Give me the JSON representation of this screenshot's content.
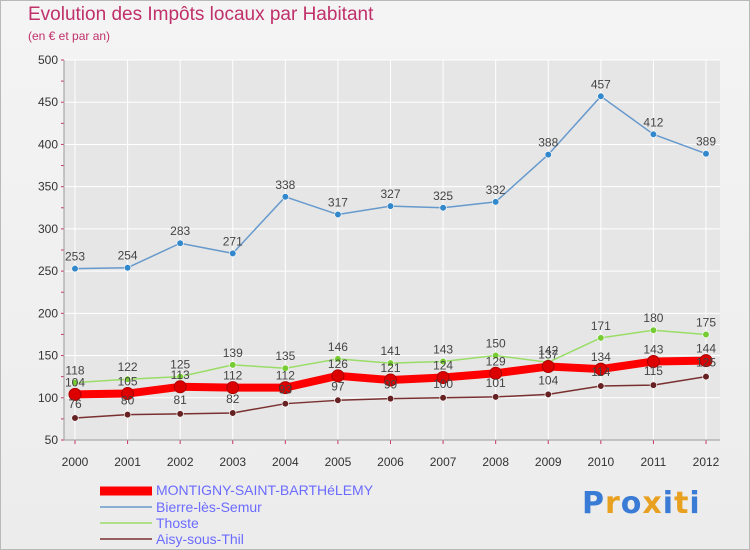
{
  "title": "Evolution des Impôts locaux par Habitant",
  "subtitle": "(en € et par an)",
  "logo_text": "Proxiti",
  "colors": {
    "title": "#c0306a",
    "legend_text": "#6b6bff",
    "axis": "#999999",
    "grid": "#ffffff"
  },
  "chart_data": {
    "type": "line",
    "title": "Evolution des Impôts locaux par Habitant",
    "subtitle": "(en € et par an)",
    "xlabel": "",
    "ylabel": "",
    "x": [
      "2000",
      "2001",
      "2002",
      "2003",
      "2004",
      "2005",
      "2006",
      "2007",
      "2008",
      "2009",
      "2010",
      "2011",
      "2012"
    ],
    "ylim": [
      50,
      500
    ],
    "yticks": [
      50,
      100,
      150,
      200,
      250,
      300,
      350,
      400,
      450,
      500
    ],
    "grid": true,
    "legend_position": "bottom",
    "series": [
      {
        "name": "Bierre-lès-Semur",
        "color": "#6699cc",
        "marker_color": "#3388cc",
        "values": [
          253,
          254,
          283,
          271,
          338,
          317,
          327,
          325,
          332,
          388,
          457,
          412,
          389
        ]
      },
      {
        "name": "Thoste",
        "color": "#99dd66",
        "marker_color": "#77cc33",
        "values": [
          118,
          122,
          125,
          139,
          135,
          146,
          141,
          143,
          150,
          142,
          171,
          180,
          175
        ]
      },
      {
        "name": "Aisy-sous-Thil",
        "color": "#7a3030",
        "marker_color": "#662222",
        "values": [
          76,
          80,
          81,
          82,
          93,
          97,
          99,
          100,
          101,
          104,
          114,
          115,
          125
        ]
      },
      {
        "name": "MONTIGNY-SAINT-BARTHéLEMY",
        "color": "#ff0000",
        "marker_color": "#dd0000",
        "values": [
          104,
          105,
          113,
          112,
          112,
          126,
          121,
          124,
          129,
          137,
          134,
          143,
          144
        ]
      }
    ]
  },
  "legend": [
    {
      "label": "MONTIGNY-SAINT-BARTHéLEMY",
      "color": "#ff0000"
    },
    {
      "label": "Bierre-lès-Semur",
      "color": "#6699cc"
    },
    {
      "label": "Thoste",
      "color": "#99dd66"
    },
    {
      "label": "Aisy-sous-Thil",
      "color": "#7a3030"
    }
  ]
}
